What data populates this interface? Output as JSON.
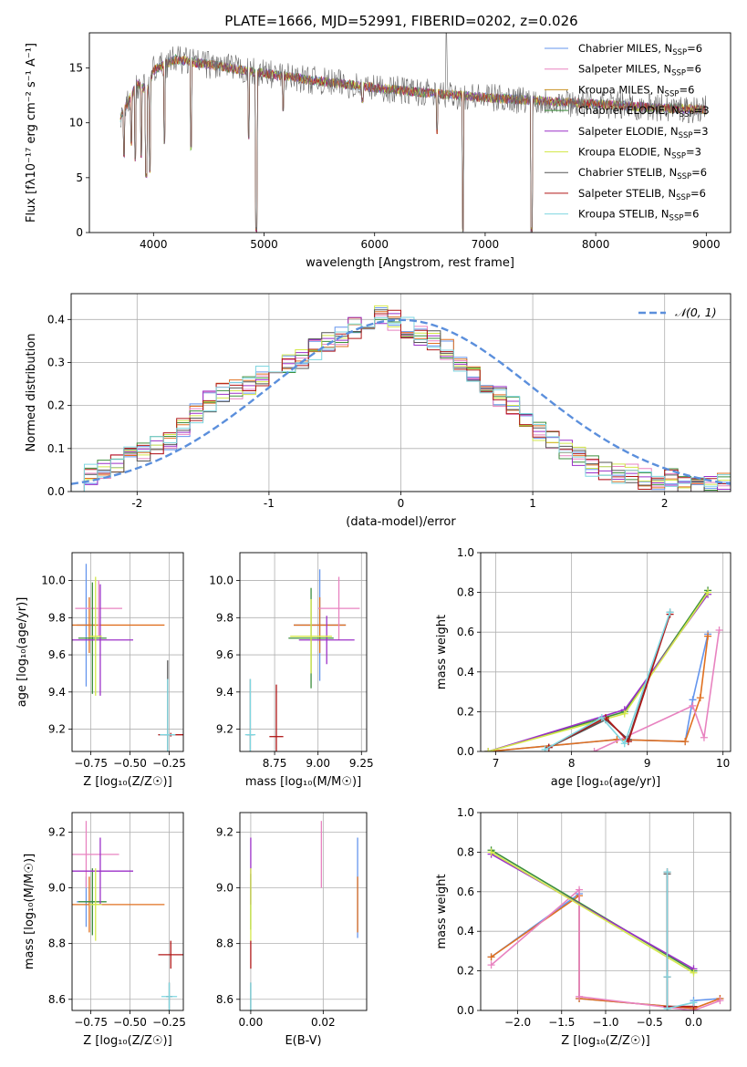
{
  "figure": {
    "title": "PLATE=1666, MJD=52991, FIBERID=0202, z=0.026"
  },
  "colors": {
    "blue": "#6495ed",
    "orange": "#e07020",
    "pink": "#e883c0",
    "green": "#3c8f3c",
    "purple": "#9b30c8",
    "yellow": "#d4e84c",
    "grey": "#6b6b6b",
    "red": "#b01818",
    "cyan": "#7fd6e0"
  },
  "chart_data": [
    {
      "type": "line",
      "xlabel": "wavelength [Angstrom, rest frame]",
      "ylabel": "Flux [fλ10⁻¹⁷ erg cm⁻² s⁻¹ A⁻¹]",
      "xlim": [
        3420,
        9220
      ],
      "ylim": [
        0,
        18.2
      ],
      "xticks": [
        4000,
        5000,
        6000,
        7000,
        8000,
        9000
      ],
      "yticks": [
        0,
        5,
        10,
        15
      ],
      "grid": false,
      "legend_position": "top-right",
      "legend": [
        {
          "label": "Chabrier MILES, N",
          "sub": "SSP",
          "val": "=6",
          "color": "#6495ed"
        },
        {
          "label": "Salpeter MILES, N",
          "sub": "SSP",
          "val": "=6",
          "color": "#e883c0"
        },
        {
          "label": "Kroupa MILES, N",
          "sub": "SSP",
          "val": "=6",
          "color": "#c89020"
        },
        {
          "label": "Chabrier ELODIE, N",
          "sub": "SSP",
          "val": "=3",
          "color": "#3c8f3c"
        },
        {
          "label": "Salpeter ELODIE, N",
          "sub": "SSP",
          "val": "=3",
          "color": "#9b30c8"
        },
        {
          "label": "Kroupa ELODIE, N",
          "sub": "SSP",
          "val": "=3",
          "color": "#d4e84c"
        },
        {
          "label": "Chabrier STELIB, N",
          "sub": "SSP",
          "val": "=6",
          "color": "#555555"
        },
        {
          "label": "Salpeter STELIB, N",
          "sub": "SSP",
          "val": "=6",
          "color": "#b01818"
        },
        {
          "label": "Kroupa STELIB, N",
          "sub": "SSP",
          "val": "=6",
          "color": "#7fd6e0"
        }
      ],
      "continuum": [
        [
          3700,
          10.5
        ],
        [
          3850,
          13.5
        ],
        [
          3950,
          13
        ],
        [
          4000,
          14.8
        ],
        [
          4200,
          15.8
        ],
        [
          4500,
          15.3
        ],
        [
          5000,
          14.5
        ],
        [
          5500,
          13.8
        ],
        [
          6000,
          13.2
        ],
        [
          6500,
          12.7
        ],
        [
          7000,
          12.3
        ],
        [
          7500,
          12.0
        ],
        [
          8000,
          11.7
        ],
        [
          8500,
          11.4
        ],
        [
          9000,
          11.2
        ]
      ],
      "dips": [
        [
          3735,
          6.8
        ],
        [
          3800,
          7.9
        ],
        [
          3835,
          6.5
        ],
        [
          3890,
          6.8
        ],
        [
          3934,
          5
        ],
        [
          3969,
          5.4
        ],
        [
          4101,
          8
        ],
        [
          4340,
          7.5
        ],
        [
          4861,
          8.5
        ],
        [
          4930,
          0
        ],
        [
          5175,
          11
        ],
        [
          5890,
          11.8
        ],
        [
          6563,
          9
        ],
        [
          6800,
          0
        ],
        [
          7420,
          0
        ]
      ],
      "spike": [
        6650,
        18.2
      ]
    },
    {
      "type": "step",
      "xlabel": "(data-model)/error",
      "ylabel": "Normed distribution",
      "xlim": [
        -2.5,
        2.5
      ],
      "ylim": [
        0,
        0.46
      ],
      "xticks": [
        -2,
        -1,
        0,
        1,
        2
      ],
      "yticks": [
        0.0,
        0.1,
        0.2,
        0.3,
        0.4
      ],
      "grid": true,
      "legend_position": "top-right",
      "legend": [
        {
          "label": "𝒩(0, 1)",
          "color": "#6495ed",
          "style": "dashed"
        }
      ],
      "bin_width": 0.1,
      "histogram": [
        0.02,
        0.04,
        0.05,
        0.07,
        0.08,
        0.09,
        0.11,
        0.12,
        0.15,
        0.18,
        0.21,
        0.23,
        0.24,
        0.25,
        0.27,
        0.28,
        0.3,
        0.31,
        0.33,
        0.35,
        0.36,
        0.38,
        0.39,
        0.41,
        0.4,
        0.38,
        0.36,
        0.35,
        0.33,
        0.3,
        0.28,
        0.24,
        0.22,
        0.2,
        0.16,
        0.14,
        0.12,
        0.1,
        0.08,
        0.06,
        0.05,
        0.04,
        0.04,
        0.03,
        0.02,
        0.03,
        0.02,
        0.02,
        0.01,
        0.02
      ]
    },
    {
      "type": "scatter",
      "xlabel": "Z [log₁₀(Z/Z☉)]",
      "ylabel": "age  [log₁₀(age/yr)]",
      "xlim": [
        -0.87,
        -0.16
      ],
      "ylim": [
        9.08,
        10.15
      ],
      "xticks": [
        -0.75,
        -0.5,
        -0.25
      ],
      "xticklabels": [
        "−0.75",
        "−0.50",
        "−0.25"
      ],
      "yticks": [
        9.2,
        9.4,
        9.6,
        9.8,
        10.0
      ],
      "grid": true,
      "points": [
        {
          "x": -0.78,
          "y": 9.76,
          "xerr": 0.06,
          "yerr": 0.33,
          "color": "#6495ed"
        },
        {
          "x": -0.76,
          "y": 9.76,
          "xerr": 0.48,
          "yerr": 0.15,
          "color": "#e07020"
        },
        {
          "x": -0.7,
          "y": 9.85,
          "xerr": 0.15,
          "yerr": 0.15,
          "color": "#e883c0"
        },
        {
          "x": -0.74,
          "y": 9.69,
          "xerr": 0.09,
          "yerr": 0.3,
          "color": "#3c8f3c"
        },
        {
          "x": -0.69,
          "y": 9.68,
          "xerr": 0.21,
          "yerr": 0.3,
          "color": "#9b30c8"
        },
        {
          "x": -0.72,
          "y": 9.7,
          "xerr": 0.04,
          "yerr": 0.32,
          "color": "#d4e84c"
        },
        {
          "x": -0.26,
          "y": 9.17,
          "xerr": 0.02,
          "yerr": 0.4,
          "color": "#555555"
        },
        {
          "x": -0.24,
          "y": 9.17,
          "xerr": 0.08,
          "yerr": 0.01,
          "color": "#b01818"
        },
        {
          "x": -0.26,
          "y": 9.17,
          "xerr": 0.05,
          "yerr": 0.3,
          "color": "#7fd6e0"
        }
      ]
    },
    {
      "type": "scatter",
      "xlabel": "mass [log₁₀(M/M☉)]",
      "ylabel": "",
      "xlim": [
        8.55,
        9.28
      ],
      "ylim": [
        9.08,
        10.15
      ],
      "xticks": [
        8.75,
        9.0,
        9.25
      ],
      "xticklabels": [
        "8.75",
        "9.00",
        "9.25"
      ],
      "yticks": [
        9.2,
        9.4,
        9.6,
        9.8,
        10.0
      ],
      "grid": true,
      "points": [
        {
          "x": 9.01,
          "y": 9.76,
          "xerr": 0.15,
          "yerr": 0.3,
          "color": "#6495ed"
        },
        {
          "x": 9.01,
          "y": 9.76,
          "xerr": 0.15,
          "yerr": 0.15,
          "color": "#e07020"
        },
        {
          "x": 9.12,
          "y": 9.85,
          "xerr": 0.12,
          "yerr": 0.17,
          "color": "#e883c0"
        },
        {
          "x": 8.96,
          "y": 9.69,
          "xerr": 0.13,
          "yerr": 0.27,
          "color": "#3c8f3c"
        },
        {
          "x": 9.05,
          "y": 9.68,
          "xerr": 0.16,
          "yerr": 0.13,
          "color": "#9b30c8"
        },
        {
          "x": 8.96,
          "y": 9.7,
          "xerr": 0.12,
          "yerr": 0.2,
          "color": "#d4e84c"
        },
        {
          "x": 8.61,
          "y": 9.17,
          "xerr": 0.02,
          "yerr": 0.3,
          "color": "#555555"
        },
        {
          "x": 8.76,
          "y": 9.16,
          "xerr": 0.04,
          "yerr": 0.28,
          "color": "#b01818"
        },
        {
          "x": 8.61,
          "y": 9.17,
          "xerr": 0.03,
          "yerr": 0.3,
          "color": "#7fd6e0"
        }
      ]
    },
    {
      "type": "line",
      "xlabel": "age  [log₁₀(age/yr)]",
      "ylabel": "mass weight",
      "xlim": [
        6.8,
        10.1
      ],
      "ylim": [
        0,
        1
      ],
      "xticks": [
        7,
        8,
        9,
        10
      ],
      "yticks": [
        0.0,
        0.2,
        0.4,
        0.6,
        0.8,
        1.0
      ],
      "grid": true,
      "series": [
        {
          "color": "#6495ed",
          "x": [
            6.9,
            8.6,
            9.5,
            9.6,
            9.8
          ],
          "y": [
            0.0,
            0.06,
            0.05,
            0.26,
            0.59
          ]
        },
        {
          "color": "#e07020",
          "x": [
            6.9,
            8.6,
            9.5,
            9.7,
            9.8
          ],
          "y": [
            0.0,
            0.06,
            0.05,
            0.27,
            0.58
          ]
        },
        {
          "color": "#e883c0",
          "x": [
            8.3,
            9.6,
            9.75,
            9.95
          ],
          "y": [
            0.0,
            0.23,
            0.07,
            0.61
          ]
        },
        {
          "color": "#3c8f3c",
          "x": [
            6.9,
            8.7,
            9.8
          ],
          "y": [
            0.0,
            0.2,
            0.81
          ]
        },
        {
          "color": "#9b30c8",
          "x": [
            6.9,
            8.7,
            9.8
          ],
          "y": [
            0.0,
            0.21,
            0.79
          ]
        },
        {
          "color": "#d4e84c",
          "x": [
            6.9,
            8.7,
            9.8
          ],
          "y": [
            0.0,
            0.19,
            0.8
          ]
        },
        {
          "color": "#555555",
          "x": [
            7.7,
            8.45,
            8.75,
            9.3
          ],
          "y": [
            0.02,
            0.16,
            0.06,
            0.7
          ]
        },
        {
          "color": "#b01818",
          "x": [
            7.7,
            8.45,
            8.75,
            9.3
          ],
          "y": [
            0.02,
            0.17,
            0.05,
            0.69
          ]
        },
        {
          "color": "#7fd6e0",
          "x": [
            7.65,
            8.4,
            8.7,
            9.3
          ],
          "y": [
            0.01,
            0.17,
            0.04,
            0.7
          ]
        }
      ]
    },
    {
      "type": "scatter",
      "xlabel": "Z [log₁₀(Z/Z☉)]",
      "ylabel": "mass [log₁₀(M/M☉)]",
      "xlim": [
        -0.87,
        -0.16
      ],
      "ylim": [
        8.56,
        9.27
      ],
      "xticks": [
        -0.75,
        -0.5,
        -0.25
      ],
      "xticklabels": [
        "−0.75",
        "−0.50",
        "−0.25"
      ],
      "yticks": [
        8.6,
        8.8,
        9.0,
        9.2
      ],
      "grid": true,
      "points": [
        {
          "x": -0.78,
          "y": 8.95,
          "xerr": 0.06,
          "yerr": 0.09,
          "color": "#6495ed"
        },
        {
          "x": -0.76,
          "y": 8.94,
          "xerr": 0.48,
          "yerr": 0.1,
          "color": "#e07020"
        },
        {
          "x": -0.78,
          "y": 9.12,
          "xerr": 0.21,
          "yerr": 0.12,
          "color": "#e883c0"
        },
        {
          "x": -0.74,
          "y": 8.95,
          "xerr": 0.09,
          "yerr": 0.12,
          "color": "#3c8f3c"
        },
        {
          "x": -0.69,
          "y": 9.06,
          "xerr": 0.21,
          "yerr": 0.12,
          "color": "#9b30c8"
        },
        {
          "x": -0.72,
          "y": 8.94,
          "xerr": 0.04,
          "yerr": 0.13,
          "color": "#d4e84c"
        },
        {
          "x": -0.25,
          "y": 8.61,
          "xerr": 0.02,
          "yerr": 0.05,
          "color": "#555555"
        },
        {
          "x": -0.24,
          "y": 8.76,
          "xerr": 0.08,
          "yerr": 0.05,
          "color": "#b01818"
        },
        {
          "x": -0.25,
          "y": 8.61,
          "xerr": 0.05,
          "yerr": 0.05,
          "color": "#7fd6e0"
        }
      ]
    },
    {
      "type": "scatter",
      "xlabel": "E(B-V)",
      "ylabel": "",
      "xlim": [
        -0.003,
        0.032
      ],
      "ylim": [
        8.56,
        9.27
      ],
      "xticks": [
        0.0,
        0.02
      ],
      "xticklabels": [
        "0.00",
        "0.02"
      ],
      "yticks": [
        8.6,
        8.8,
        9.0,
        9.2
      ],
      "grid": true,
      "points": [
        {
          "x": 0.0295,
          "y": 9.0,
          "xerr": 0,
          "yerr": 0.18,
          "color": "#6495ed"
        },
        {
          "x": 0.0295,
          "y": 8.94,
          "xerr": 0,
          "yerr": 0.1,
          "color": "#e07020"
        },
        {
          "x": 0.0195,
          "y": 9.12,
          "xerr": 0,
          "yerr": 0.12,
          "color": "#e883c0"
        },
        {
          "x": 0.0,
          "y": 8.95,
          "xerr": 0,
          "yerr": 0.1,
          "color": "#3c8f3c"
        },
        {
          "x": 0.0,
          "y": 9.06,
          "xerr": 0,
          "yerr": 0.12,
          "color": "#9b30c8"
        },
        {
          "x": 0.0,
          "y": 8.94,
          "xerr": 0,
          "yerr": 0.13,
          "color": "#d4e84c"
        },
        {
          "x": 0.0,
          "y": 8.61,
          "xerr": 0,
          "yerr": 0.05,
          "color": "#555555"
        },
        {
          "x": 0.0,
          "y": 8.76,
          "xerr": 0,
          "yerr": 0.05,
          "color": "#b01818"
        },
        {
          "x": 0.0,
          "y": 8.61,
          "xerr": 0,
          "yerr": 0.05,
          "color": "#7fd6e0"
        }
      ]
    },
    {
      "type": "line",
      "xlabel": "Z [log₁₀(Z/Z☉)]",
      "ylabel": "mass weight",
      "xlim": [
        -2.42,
        0.42
      ],
      "ylim": [
        0,
        1
      ],
      "xticks": [
        -2.0,
        -1.5,
        -1.0,
        -0.5,
        0.0
      ],
      "xticklabels": [
        "−2.0",
        "−1.5",
        "−1.0",
        "−0.5",
        "0.0"
      ],
      "yticks": [
        0.0,
        0.2,
        0.4,
        0.6,
        0.8,
        1.0
      ],
      "grid": true,
      "series": [
        {
          "color": "#6495ed",
          "x": [
            -2.3,
            -1.3,
            -1.3,
            0.0,
            0.0,
            0.3
          ],
          "y": [
            0.27,
            0.59,
            0.06,
            0.01,
            0.05,
            0.06
          ]
        },
        {
          "color": "#e07020",
          "x": [
            -2.3,
            -1.3,
            -1.3,
            0.0,
            0.3
          ],
          "y": [
            0.27,
            0.58,
            0.06,
            0.01,
            0.06
          ]
        },
        {
          "color": "#e883c0",
          "x": [
            -2.3,
            -1.3,
            -1.3,
            0.0,
            0.3
          ],
          "y": [
            0.23,
            0.61,
            0.07,
            0.0,
            0.05
          ]
        },
        {
          "color": "#3c8f3c",
          "x": [
            -2.3,
            0.0
          ],
          "y": [
            0.81,
            0.2
          ]
        },
        {
          "color": "#9b30c8",
          "x": [
            -2.3,
            0.0
          ],
          "y": [
            0.79,
            0.21
          ]
        },
        {
          "color": "#d4e84c",
          "x": [
            -2.3,
            0.0
          ],
          "y": [
            0.8,
            0.19
          ]
        },
        {
          "color": "#555555",
          "x": [
            -0.3,
            -0.3,
            -0.3,
            0.0
          ],
          "y": [
            0.69,
            0.17,
            0.02,
            0.02
          ]
        },
        {
          "color": "#b01818",
          "x": [
            -0.3,
            -0.3,
            -0.3,
            0.0
          ],
          "y": [
            0.7,
            0.17,
            0.02,
            0.02
          ]
        },
        {
          "color": "#7fd6e0",
          "x": [
            -0.3,
            -0.3,
            -0.3,
            0.0
          ],
          "y": [
            0.7,
            0.17,
            0.01,
            0.04
          ]
        }
      ]
    }
  ]
}
